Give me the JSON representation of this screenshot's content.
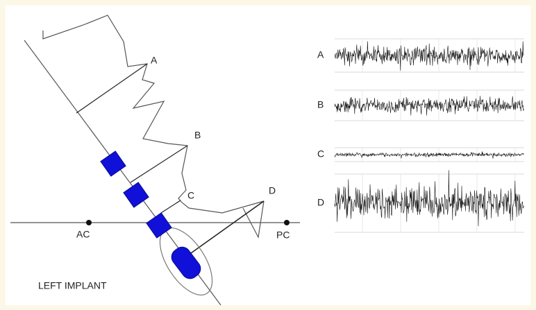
{
  "trajectory": {
    "points": [
      "A",
      "B",
      "C",
      "D"
    ],
    "landmarks": [
      "AC",
      "PC"
    ],
    "caption": "LEFT IMPLANT"
  },
  "recordings": {
    "labels": [
      "A",
      "B",
      "C",
      "D"
    ]
  }
}
